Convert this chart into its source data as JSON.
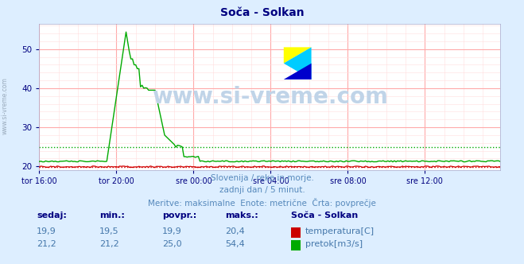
{
  "title": "Soča - Solkan",
  "bg_color": "#ddeeff",
  "plot_bg_color": "#ffffff",
  "grid_color_major": "#ffaaaa",
  "grid_color_minor": "#ffdddd",
  "tick_color": "#000080",
  "title_color": "#000080",
  "ylim": [
    19.0,
    56.5
  ],
  "yticks": [
    20,
    30,
    40,
    50
  ],
  "x_labels": [
    "tor 16:00",
    "tor 20:00",
    "sre 00:00",
    "sre 04:00",
    "sre 08:00",
    "sre 12:00"
  ],
  "x_ticks_pos": [
    0,
    48,
    96,
    144,
    192,
    240
  ],
  "total_points": 288,
  "temp_color": "#cc0000",
  "flow_color": "#00aa00",
  "temp_avg": 19.9,
  "flow_avg": 25.0,
  "footer_line1": "Slovenija / reke in morje.",
  "footer_line2": "zadnji dan / 5 minut.",
  "footer_line3": "Meritve: maksimalne  Enote: metrične  Črta: povprečje",
  "footer_color": "#5588bb",
  "watermark": "www.si-vreme.com",
  "watermark_color": "#c0d4e8",
  "table_header_color": "#000080",
  "table_value_color": "#4477aa",
  "sidebar_text": "www.si-vreme.com",
  "sidebar_color": "#99aabb",
  "temp_row": [
    "19,9",
    "19,5",
    "19,9",
    "20,4"
  ],
  "flow_row": [
    "21,2",
    "21,2",
    "25,0",
    "54,4"
  ],
  "col_headers": [
    "sedaj:",
    "min.:",
    "povpr.:",
    "maks.:"
  ],
  "table_station": "Soča - Solkan",
  "table_temp_label": "temperatura[C]",
  "table_flow_label": "pretok[m3/s]"
}
